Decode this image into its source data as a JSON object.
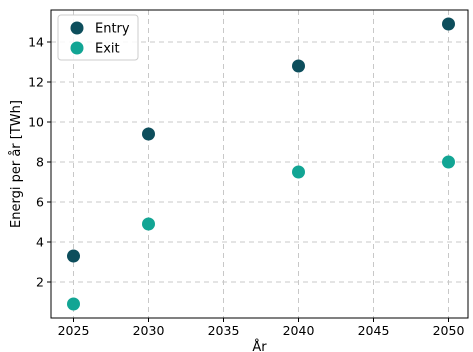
{
  "chart_data": {
    "type": "scatter",
    "title": "",
    "xlabel": "År",
    "ylabel": "Energi per år [TWh]",
    "xlim": [
      2023.5,
      2051.3
    ],
    "ylim": [
      0.2,
      15.6
    ],
    "xticks": [
      2025,
      2030,
      2035,
      2040,
      2045,
      2050
    ],
    "yticks": [
      2,
      4,
      6,
      8,
      10,
      12,
      14
    ],
    "grid": true,
    "legend_position": "top-left",
    "series": [
      {
        "name": "Entry",
        "color": "#0d4e5c",
        "points": [
          {
            "x": 2025,
            "y": 3.3
          },
          {
            "x": 2030,
            "y": 9.4
          },
          {
            "x": 2040,
            "y": 12.8
          },
          {
            "x": 2050,
            "y": 14.9
          }
        ]
      },
      {
        "name": "Exit",
        "color": "#12a594",
        "points": [
          {
            "x": 2025,
            "y": 0.9
          },
          {
            "x": 2030,
            "y": 4.9
          },
          {
            "x": 2040,
            "y": 7.5
          },
          {
            "x": 2050,
            "y": 8.0
          }
        ]
      }
    ]
  }
}
